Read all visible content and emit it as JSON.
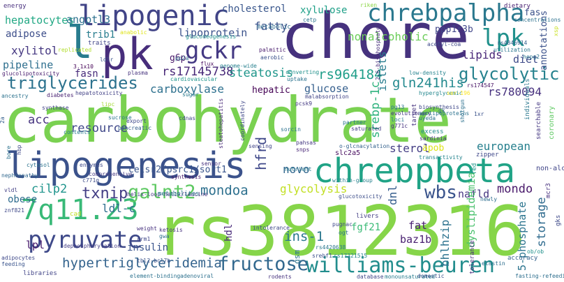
{
  "title": "word cloud",
  "words": [
    {
      "text": "carbohydrate",
      "color": "#7ad151"
    },
    {
      "text": "rs3812316",
      "color": "#86d549"
    },
    {
      "text": "chore",
      "color": "#46327e"
    },
    {
      "text": "lipogenesis",
      "color": "#3b528b"
    },
    {
      "text": "chrebpbeta",
      "color": "#20a386"
    },
    {
      "text": "lipogenic",
      "color": "#414487"
    },
    {
      "text": "chrebpalpha",
      "color": "#2a788e"
    },
    {
      "text": "pk",
      "color": "#472d7b"
    },
    {
      "text": "lpk",
      "color": "#21918c"
    },
    {
      "text": "l",
      "color": "#287c8e"
    },
    {
      "text": "gckr",
      "color": "#443983"
    },
    {
      "text": "7q11.23",
      "color": "#38b977"
    },
    {
      "text": "williams-beuren",
      "color": "#228d8d"
    },
    {
      "text": "fructose",
      "color": "#31688e"
    },
    {
      "text": "pyruvate",
      "color": "#3e4989"
    },
    {
      "text": "galnt2",
      "color": "#5ec962"
    },
    {
      "text": "triglycerides",
      "color": "#2c728e"
    },
    {
      "text": "glycolytic",
      "color": "#26828e"
    },
    {
      "text": "rs964184",
      "color": "#1f9e89"
    },
    {
      "text": "rs17145738",
      "color": "#482878"
    },
    {
      "text": "hypertriglyceridemia",
      "color": "#33638d"
    },
    {
      "text": "mondoa",
      "color": "#2d708e"
    },
    {
      "text": "txnip",
      "color": "#433e85"
    },
    {
      "text": "wbs",
      "color": "#3a548c"
    },
    {
      "text": "cilp2",
      "color": "#1f948c"
    },
    {
      "text": "glycolysis",
      "color": "#c2df23"
    },
    {
      "text": "ins-1",
      "color": "#2a778e"
    },
    {
      "text": "resource",
      "color": "#3f4788"
    },
    {
      "text": "carboxylase",
      "color": "#2d708e"
    },
    {
      "text": "steatosis",
      "color": "#1f968b"
    },
    {
      "text": "gln241his",
      "color": "#23898e"
    },
    {
      "text": "rs780094",
      "color": "#46307e"
    },
    {
      "text": "lipoprotein",
      "color": "#3b528b"
    },
    {
      "text": "nonalcoholic",
      "color": "#6ccd5a"
    },
    {
      "text": "lipids",
      "color": "#482677"
    },
    {
      "text": "diet",
      "color": "#3e4a89"
    },
    {
      "text": "ppp1r3b",
      "color": "#404688"
    },
    {
      "text": "xylulose",
      "color": "#1fa088"
    },
    {
      "text": "hepatocytes",
      "color": "#22a884"
    },
    {
      "text": "angptl3",
      "color": "#2d718e"
    },
    {
      "text": "adipose",
      "color": "#3d4e8a"
    },
    {
      "text": "trib1",
      "color": "#287d8e"
    },
    {
      "text": "xylitol",
      "color": "#453781"
    },
    {
      "text": "pipeline",
      "color": "#2e6f8e"
    },
    {
      "text": "fasn",
      "color": "#472a7a"
    },
    {
      "text": "g6p",
      "color": "#481769"
    },
    {
      "text": "fatty",
      "color": "#3a538b"
    },
    {
      "text": "cholesterol",
      "color": "#39568c"
    },
    {
      "text": "hepatic",
      "color": "#440154"
    },
    {
      "text": "glucose",
      "color": "#355f8d"
    },
    {
      "text": "acc",
      "color": "#46337f"
    },
    {
      "text": "srebp-1c",
      "color": "#2db27d"
    },
    {
      "text": "sterol",
      "color": "#433d84"
    },
    {
      "text": "apob",
      "color": "#dde318"
    },
    {
      "text": "european",
      "color": "#27808e"
    },
    {
      "text": "nafld",
      "color": "#453581"
    },
    {
      "text": "mondo",
      "color": "#48186a"
    },
    {
      "text": "novo",
      "color": "#31678e"
    },
    {
      "text": "dnl",
      "color": "#355e8d"
    },
    {
      "text": "celsr2/psrc1/sort1",
      "color": "#39558c"
    },
    {
      "text": "ldl-c",
      "color": "#2e6e8e"
    },
    {
      "text": "insulin",
      "color": "#3a548c"
    },
    {
      "text": "fgf21",
      "color": "#3aba76"
    },
    {
      "text": "fat",
      "color": "#482071"
    },
    {
      "text": "baz1b",
      "color": "#481f70"
    },
    {
      "text": "dyslipidemia",
      "color": "#4ac16d"
    },
    {
      "text": "5-phosphate",
      "color": "#2b748e"
    },
    {
      "text": "storage",
      "color": "#2f6b8e"
    },
    {
      "text": "bhlhzip",
      "color": "#2c728e"
    },
    {
      "text": "obese",
      "color": "#2f6c8e"
    },
    {
      "text": "lpl",
      "color": "#481c6e"
    },
    {
      "text": "hfrd",
      "color": "#3f4889"
    },
    {
      "text": "hdl",
      "color": "#482979"
    },
    {
      "text": "islets",
      "color": "#287c8e"
    },
    {
      "text": "annotations",
      "color": "#3b518b"
    },
    {
      "text": "fas",
      "color": "#3b528b"
    },
    {
      "text": "energy",
      "color": "#472f7d"
    },
    {
      "text": "riken",
      "color": "#8bd646"
    },
    {
      "text": "cetp",
      "color": "#2c738e"
    },
    {
      "text": "metabolic",
      "color": "#2f6c8e"
    },
    {
      "text": "dietary",
      "color": "#482071"
    },
    {
      "text": "concentrations",
      "color": "#2d718e"
    },
    {
      "text": "acetyl-coa",
      "color": "#3e4989"
    },
    {
      "text": "gluconeogenesis",
      "color": "#21918c"
    },
    {
      "text": "traits",
      "color": "#404588"
    },
    {
      "text": "anabolic",
      "color": "#dfe318"
    },
    {
      "text": "replicated",
      "color": "#b2dd2d"
    },
    {
      "text": "ldlr",
      "color": "#3b528b"
    },
    {
      "text": "pp2a",
      "color": "#2e6d8e"
    },
    {
      "text": "genome-wide",
      "color": "#27808e"
    },
    {
      "text": "flux",
      "color": "#460a5d"
    },
    {
      "text": "palmitic",
      "color": "#481a6c"
    },
    {
      "text": "aerobic",
      "color": "#3b518b"
    },
    {
      "text": "2,6-bisphosphate",
      "color": "#472d7b"
    },
    {
      "text": "rs4846914",
      "color": "#34618d"
    },
    {
      "text": "utilization",
      "color": "#2a768e"
    },
    {
      "text": "hepg2",
      "color": "#2b748e"
    },
    {
      "text": "3.1x10",
      "color": "#440256"
    },
    {
      "text": "plasma",
      "color": "#46327e"
    },
    {
      "text": "cardiovascular",
      "color": "#1f948c"
    },
    {
      "text": "converting",
      "color": "#21918c"
    },
    {
      "text": "low-density",
      "color": "#25838e"
    },
    {
      "text": "uptake",
      "color": "#2c738e"
    },
    {
      "text": "sugar",
      "color": "#29798e"
    },
    {
      "text": "malabsorption",
      "color": "#414487"
    },
    {
      "text": "rs174547",
      "color": "#471164"
    },
    {
      "text": "glucolipotoxicity",
      "color": "#481c6e"
    },
    {
      "text": "diabetes",
      "color": "#482172"
    },
    {
      "text": "hepatotoxicity",
      "color": "#424186"
    },
    {
      "text": "ancestry",
      "color": "#2c728e"
    },
    {
      "text": "pcsk9",
      "color": "#443a83"
    },
    {
      "text": "cdnas",
      "color": "#3f4788"
    },
    {
      "text": "hyperglycemic",
      "color": "#24878e"
    },
    {
      "text": "ser-196",
      "color": "#fde725"
    },
    {
      "text": "lipc",
      "color": "#a5db36"
    },
    {
      "text": "synthase",
      "color": "#414287"
    },
    {
      "text": "export",
      "color": "#3f4889"
    },
    {
      "text": "pancreatic",
      "color": "#355f8d"
    },
    {
      "text": "steatohepatitis",
      "color": "#482979"
    },
    {
      "text": "coordinately",
      "color": "#3f4788"
    },
    {
      "text": "sorcin",
      "color": "#2c728e"
    },
    {
      "text": "saturated",
      "color": "#433e85"
    },
    {
      "text": "uyeda",
      "color": "#2c738e"
    },
    {
      "text": "gk",
      "color": "#33638d"
    },
    {
      "text": "1xr",
      "color": "#3b528b"
    },
    {
      "text": "excess",
      "color": "#228c8d"
    },
    {
      "text": "sardinia",
      "color": "#46337f"
    },
    {
      "text": "pg13",
      "color": "#2d718e"
    },
    {
      "text": "shotgun",
      "color": "#404588"
    },
    {
      "text": "sensing",
      "color": "#453882"
    },
    {
      "text": "pahsas",
      "color": "#482576"
    },
    {
      "text": "snps",
      "color": "#2b748e"
    },
    {
      "text": "partner",
      "color": "#34618d"
    },
    {
      "text": "o-glcnacylation",
      "color": "#460b5e"
    },
    {
      "text": "slc2a5",
      "color": "#25848e"
    },
    {
      "text": "transactivity",
      "color": "#3f4889"
    },
    {
      "text": "zipper",
      "color": "#404588"
    },
    {
      "text": "non-alcoholic",
      "color": "#287c8e"
    },
    {
      "text": "contents",
      "color": "#2a788e"
    },
    {
      "text": "nutrient",
      "color": "#2c738e"
    },
    {
      "text": "cytosol",
      "color": "#443a83"
    },
    {
      "text": "comprehensive",
      "color": "#3e4c8a"
    },
    {
      "text": "c771g",
      "color": "#48186a"
    },
    {
      "text": "synthesis",
      "color": "#46327e"
    },
    {
      "text": "sensor",
      "color": "#31688e"
    },
    {
      "text": "nephropathy",
      "color": "#3e4a89"
    },
    {
      "text": "enzymes",
      "color": "#453781"
    },
    {
      "text": "helix-loop-helix/leucine",
      "color": "#2a768e"
    },
    {
      "text": "metabolites",
      "color": "#27808e"
    },
    {
      "text": "within-group",
      "color": "#3d4e8a"
    },
    {
      "text": "glucotoxicity",
      "color": "#2e6d8e"
    },
    {
      "text": "newly",
      "color": "#46307e"
    },
    {
      "text": "vldl",
      "color": "#423f85"
    },
    {
      "text": "znf821",
      "color": "#3f4889"
    },
    {
      "text": "cad",
      "color": "#c0df25"
    },
    {
      "text": "weight",
      "color": "#46307e"
    },
    {
      "text": "mcr3",
      "color": "#46327e"
    },
    {
      "text": "ketosis",
      "color": "#2e6f8e"
    },
    {
      "text": "gwa",
      "color": "#3f4788"
    },
    {
      "text": "crm1",
      "color": "#3e4989"
    },
    {
      "text": "intolerance",
      "color": "#2b748e"
    },
    {
      "text": "livers",
      "color": "#433e85"
    },
    {
      "text": "pugnac",
      "color": "#3f4889"
    },
    {
      "text": "ogt",
      "color": "#2c728e"
    },
    {
      "text": "gsm",
      "color": "#2a778e"
    },
    {
      "text": "rs4420638",
      "color": "#433d84"
    },
    {
      "text": "dephosphorylation",
      "color": "#472d7b"
    },
    {
      "text": "srebf1",
      "color": "#3c508b"
    },
    {
      "text": "rs17321515",
      "color": "#25838e"
    },
    {
      "text": "elastin",
      "color": "#2e6e8e"
    },
    {
      "text": "tolerance",
      "color": "#33628d"
    },
    {
      "text": "accuracy",
      "color": "#21918c"
    },
    {
      "text": "ob/ob",
      "color": "#3e4989"
    },
    {
      "text": "adipocytes",
      "color": "#3a548c"
    },
    {
      "text": "feeding",
      "color": "#414487"
    },
    {
      "text": "libraries",
      "color": "#2c728e"
    },
    {
      "text": "element-binding",
      "color": "#3b528b"
    },
    {
      "text": "tbl2-bcl7b",
      "color": "#2d708e"
    },
    {
      "text": "adenoviral",
      "color": "#46327e"
    },
    {
      "text": "rodents",
      "color": "#404688"
    },
    {
      "text": "database",
      "color": "#287c8e"
    },
    {
      "text": "monounsaturated",
      "color": "#3b518b"
    },
    {
      "text": "domestic",
      "color": "#2e6f8e"
    },
    {
      "text": "fasting-refeeding",
      "color": "#5ec962"
    },
    {
      "text": "evolutionary",
      "color": "#453882"
    },
    {
      "text": "loci",
      "color": "#2a778e"
    },
    {
      "text": "g771c",
      "color": "#46327e"
    },
    {
      "text": "biosynthesis",
      "color": "#3f4889"
    },
    {
      "text": "apolipoproteins",
      "color": "#2c728e"
    },
    {
      "text": "coronary",
      "color": "#355f8d"
    },
    {
      "text": "searchable",
      "color": "#1f968b"
    },
    {
      "text": "individuals",
      "color": "#3e4a89"
    },
    {
      "text": "target",
      "color": "#c8e020"
    },
    {
      "text": "hbp",
      "color": "#2a768e"
    },
    {
      "text": "bore",
      "color": "#2c728e"
    },
    {
      "text": "2a",
      "color": "#9fda3a"
    },
    {
      "text": "fed",
      "color": "#a2da37"
    },
    {
      "text": "gks",
      "color": "#2e6e8e"
    },
    {
      "text": "xsp",
      "color": "#2a778e"
    },
    {
      "text": "sucrose",
      "color": "#2d718e"
    }
  ]
}
